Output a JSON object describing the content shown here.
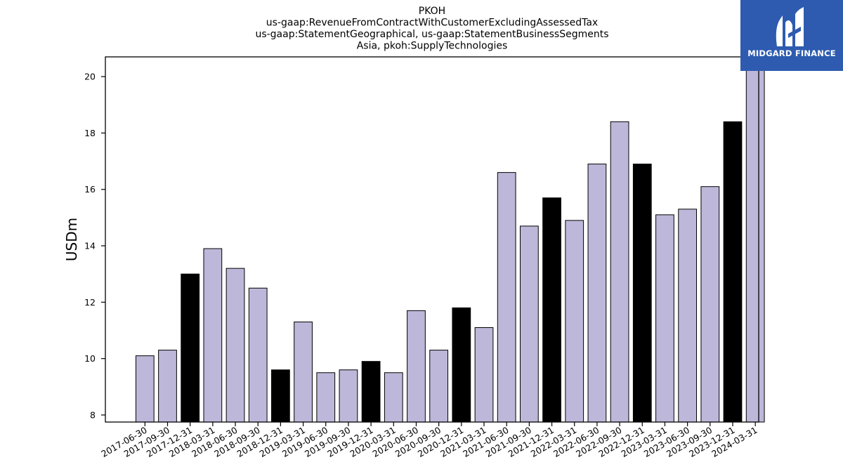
{
  "chart_data": {
    "type": "bar",
    "title_lines": [
      "PKOH",
      "us-gaap:RevenueFromContractWithCustomerExcludingAssessedTax",
      "us-gaap:StatementGeographical, us-gaap:StatementBusinessSegments",
      "Asia, pkoh:SupplyTechnologies"
    ],
    "ylabel": "USDm",
    "xlabel": "",
    "ylim": [
      7.75,
      20.7
    ],
    "yticks": [
      8,
      10,
      12,
      14,
      16,
      18,
      20
    ],
    "categories": [
      "2017-06-30",
      "2017-09-30",
      "2017-12-31",
      "2018-03-31",
      "2018-06-30",
      "2018-09-30",
      "2018-12-31",
      "2019-03-31",
      "2019-06-30",
      "2019-09-30",
      "2019-12-31",
      "2020-03-31",
      "2020-06-30",
      "2020-09-30",
      "2020-12-31",
      "2021-03-31",
      "2021-06-30",
      "2021-09-30",
      "2021-12-31",
      "2022-03-31",
      "2022-06-30",
      "2022-09-30",
      "2022-12-31",
      "2023-03-31",
      "2023-06-30",
      "2023-09-30",
      "2023-12-31",
      "2024-03-31"
    ],
    "values": [
      10.1,
      10.3,
      13.0,
      13.9,
      13.2,
      12.5,
      9.6,
      11.3,
      9.5,
      9.6,
      9.9,
      9.5,
      11.7,
      10.3,
      11.8,
      11.1,
      16.6,
      14.7,
      15.7,
      14.9,
      16.9,
      18.4,
      16.9,
      15.1,
      15.3,
      16.1,
      18.4,
      20.7
    ],
    "highlight": [
      false,
      false,
      true,
      false,
      false,
      false,
      true,
      false,
      false,
      false,
      true,
      false,
      false,
      false,
      true,
      false,
      false,
      false,
      true,
      false,
      false,
      false,
      true,
      false,
      false,
      false,
      true,
      false
    ],
    "colors": {
      "normal": "#bdb8d9",
      "highlight": "#000000",
      "edge": "#000000"
    },
    "grid": false,
    "legend": "none"
  },
  "logo": {
    "text": "MIDGARD FINANCE",
    "background": "#2e5bb0"
  }
}
